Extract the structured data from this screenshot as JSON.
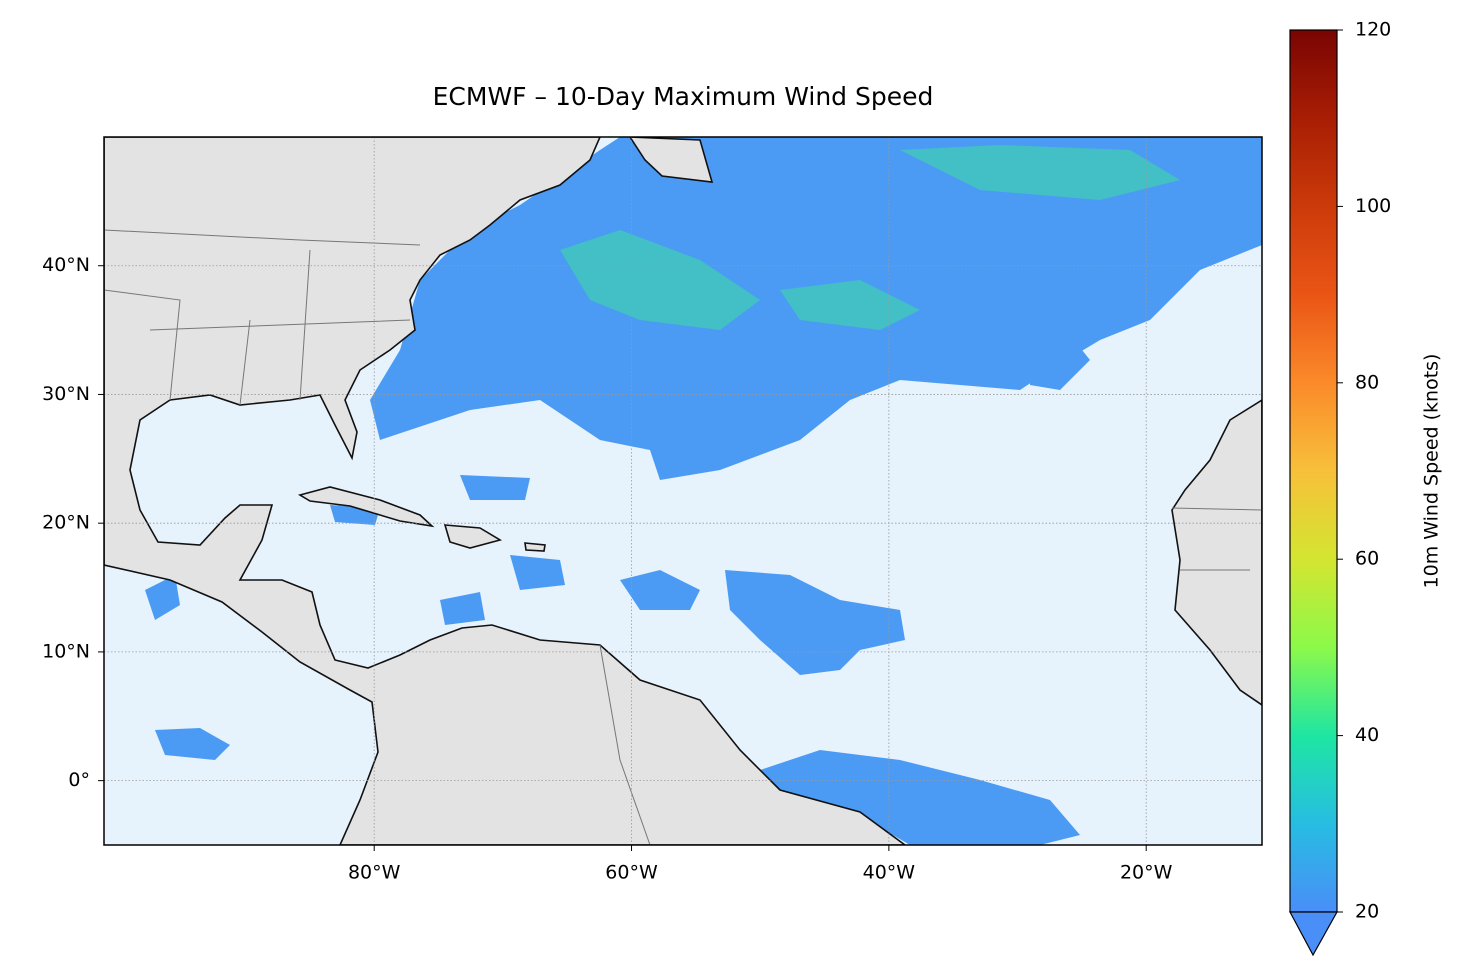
{
  "chart_data": {
    "type": "map",
    "title": "ECMWF – 10-Day Maximum Wind Speed",
    "xlim": [
      -101,
      -11
    ],
    "ylim": [
      -5,
      50
    ],
    "xticks": [
      {
        "value": -80,
        "label": "80°W"
      },
      {
        "value": -60,
        "label": "60°W"
      },
      {
        "value": -40,
        "label": "40°W"
      },
      {
        "value": -20,
        "label": "20°W"
      }
    ],
    "yticks": [
      {
        "value": 0,
        "label": "0°"
      },
      {
        "value": 10,
        "label": "10°N"
      },
      {
        "value": 20,
        "label": "20°N"
      },
      {
        "value": 30,
        "label": "30°N"
      },
      {
        "value": 40,
        "label": "40°N"
      }
    ],
    "grid": true,
    "colorbar": {
      "label": "10m Wind Speed (knots)",
      "lim": [
        20,
        120
      ],
      "ticks": [
        20,
        40,
        60,
        80,
        100,
        120
      ],
      "extend": "min",
      "colors": [
        "#4a8ef8",
        "#27bde2",
        "#1ee6a2",
        "#8cf94a",
        "#d4e530",
        "#f7c03a",
        "#fb8a2a",
        "#ea5515",
        "#cc3a0a",
        "#a81e04",
        "#7a0403"
      ]
    }
  }
}
